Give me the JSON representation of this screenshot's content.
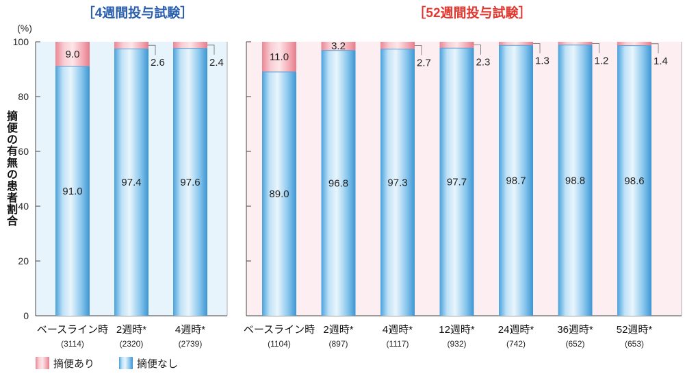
{
  "colors": {
    "yes_fill": "#f2a5ae",
    "no_fill": "#62b3e8",
    "left_panel_bg": "#e8f4fc",
    "right_panel_bg": "#fdeef1",
    "title_left": "#2a5fae",
    "title_right": "#e0382f"
  },
  "chart_data": [
    {
      "type": "bar",
      "stacked": true,
      "title": "［4週間投与試験］",
      "ylabel": "摘便の有無の患者割合",
      "yunit": "(%)",
      "ylim": [
        0,
        100
      ],
      "yticks": [
        "0",
        "20",
        "40",
        "60",
        "80",
        "100"
      ],
      "categories": [
        "ベースライン時",
        "2週時*",
        "4週時*"
      ],
      "n": [
        "(3114)",
        "(2320)",
        "(2739)"
      ],
      "series": [
        {
          "name": "摘便なし",
          "values": [
            91.0,
            97.4,
            97.6
          ],
          "labels": [
            "91.0",
            "97.4",
            "97.6"
          ]
        },
        {
          "name": "摘便あり",
          "values": [
            9.0,
            2.6,
            2.4
          ],
          "labels": [
            "9.0",
            "2.6",
            "2.4"
          ]
        }
      ]
    },
    {
      "type": "bar",
      "stacked": true,
      "title": "［52週間投与試験］",
      "ylim": [
        0,
        100
      ],
      "categories": [
        "ベースライン時",
        "2週時*",
        "4週時*",
        "12週時*",
        "24週時*",
        "36週時*",
        "52週時*"
      ],
      "n": [
        "(1104)",
        "(897)",
        "(1117)",
        "(932)",
        "(742)",
        "(652)",
        "(653)"
      ],
      "series": [
        {
          "name": "摘便なし",
          "values": [
            89.0,
            96.8,
            97.3,
            97.7,
            98.7,
            98.8,
            98.6
          ],
          "labels": [
            "89.0",
            "96.8",
            "97.3",
            "97.7",
            "98.7",
            "98.8",
            "98.6"
          ]
        },
        {
          "name": "摘便あり",
          "values": [
            11.0,
            3.2,
            2.7,
            2.3,
            1.3,
            1.2,
            1.4
          ],
          "labels": [
            "11.0",
            "3.2",
            "2.7",
            "2.3",
            "1.3",
            "1.2",
            "1.4"
          ]
        }
      ]
    }
  ],
  "legend": [
    {
      "key": "yes",
      "label": "摘便あり"
    },
    {
      "key": "no",
      "label": "摘便なし"
    }
  ]
}
